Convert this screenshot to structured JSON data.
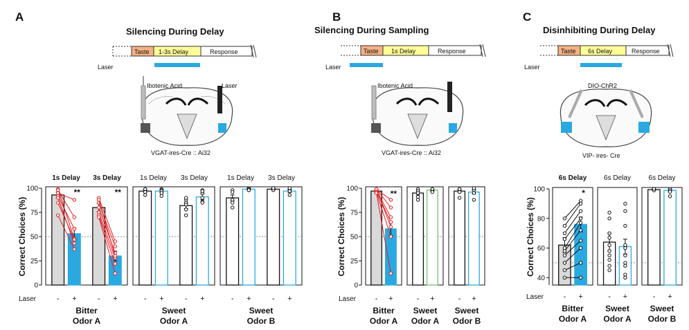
{
  "colors": {
    "laser": "#2aa9e0",
    "taste": "#f4b183",
    "delay": "#ffff99",
    "control_bar": "#d9d9d9",
    "red_lines": "#e8191c",
    "black": "#111111",
    "green_bar": "#7ac07a"
  },
  "panels": [
    {
      "letter": "A",
      "title": "Silencing During Delay",
      "timeline": {
        "taste": "Taste",
        "delay": "1-3s Delay",
        "response": "Response",
        "laser": "Laser"
      },
      "brain": {
        "left_label": "Ibotenic Acid",
        "right_label": "Laser",
        "caption": "VGAT-ires-Cre :: Ai32"
      },
      "groups": [
        {
          "label": "Bitter\nOdor A",
          "subs": [
            {
              "label": "1s Delay",
              "bold": true,
              "sig": "**"
            },
            {
              "label": "3s Delay",
              "bold": true,
              "sig": "**"
            }
          ]
        },
        {
          "label": "Sweet\nOdor A",
          "subs": [
            {
              "label": "1s Delay",
              "bold": false,
              "sig": ""
            },
            {
              "label": "3s Delay",
              "bold": false,
              "sig": ""
            }
          ]
        },
        {
          "label": "Sweet\nOdor B",
          "subs": [
            {
              "label": "1s Delay",
              "bold": false,
              "sig": ""
            },
            {
              "label": "3s Delay",
              "bold": false,
              "sig": ""
            }
          ]
        }
      ]
    },
    {
      "letter": "B",
      "title": "Silencing During Sampling",
      "timeline": {
        "taste": "Taste",
        "delay": "1s Delay",
        "response": "Response",
        "laser": "Laser"
      },
      "brain": {
        "left_label": "Ibotenic Acid",
        "right_label": "",
        "caption": "VGAT-ires-Cre :: Ai32"
      },
      "groups": [
        {
          "label": "Bitter\nOdor A",
          "subs": [
            {
              "label": "",
              "bold": false,
              "sig": "**"
            }
          ]
        },
        {
          "label": "Sweet\nOdor A",
          "subs": [
            {
              "label": "",
              "bold": false,
              "sig": ""
            }
          ]
        },
        {
          "label": "Sweet\nOdor B",
          "subs": [
            {
              "label": "",
              "bold": false,
              "sig": ""
            }
          ]
        }
      ]
    },
    {
      "letter": "C",
      "title": "Disinhibiting During Delay",
      "timeline": {
        "taste": "Taste",
        "delay": "6s Delay",
        "response": "Response",
        "laser": "Laser"
      },
      "brain": {
        "left_label": "",
        "right_label": "",
        "top_label": "DIO-ChR2",
        "caption": "VIP- ires- Cre"
      },
      "groups": [
        {
          "label": "Bitter\nOdor A",
          "subs": [
            {
              "label": "6s Delay",
              "bold": true,
              "sig": "*"
            }
          ]
        },
        {
          "label": "Sweet\nOdor A",
          "subs": [
            {
              "label": "6s Delay",
              "bold": false,
              "sig": ""
            }
          ]
        },
        {
          "label": "Sweet\nOdor B",
          "subs": [
            {
              "label": "6s Delay",
              "bold": false,
              "sig": ""
            }
          ]
        }
      ]
    }
  ],
  "axis": {
    "ylabel": "Correct Choices (%)",
    "laser_label": "Laser",
    "minus": "-",
    "plus": "+"
  },
  "chart_data": [
    {
      "type": "bar",
      "panel": "A",
      "ylabel": "Correct Choices (%)",
      "ylim": [
        0,
        100
      ],
      "yticks": [
        0,
        25,
        50,
        75,
        100
      ],
      "chance": 50,
      "series": [
        {
          "name": "",
          "group": "Bitter Odor A",
          "delay": "1s Delay",
          "means": [
            93,
            53
          ],
          "err": [
            3,
            6
          ],
          "style": [
            "control",
            "laser"
          ],
          "lines": "red",
          "points": [
            [
              99,
              48
            ],
            [
              98,
              70
            ],
            [
              95,
              88
            ],
            [
              92,
              58
            ],
            [
              90,
              43
            ],
            [
              85,
              47
            ],
            [
              72,
              37
            ]
          ]
        },
        {
          "name": "",
          "group": "Bitter Odor A",
          "delay": "3s Delay",
          "means": [
            80,
            30
          ],
          "err": [
            4,
            5
          ],
          "style": [
            "control",
            "laser"
          ],
          "lines": "red",
          "points": [
            [
              90,
              45
            ],
            [
              85,
              40
            ],
            [
              80,
              33
            ],
            [
              75,
              28
            ],
            [
              72,
              22
            ],
            [
              70,
              12
            ],
            [
              88,
              30
            ]
          ]
        },
        {
          "name": "",
          "group": "Sweet Odor A",
          "delay": "1s Delay",
          "means": [
            97,
            97
          ],
          "err": [
            1.5,
            1.5
          ],
          "style": [
            "outline",
            "laser_outline"
          ],
          "points": [
            [
              99,
              99
            ],
            [
              98,
              98
            ],
            [
              96,
              97
            ],
            [
              93,
              95
            ],
            [
              99,
              92
            ]
          ]
        },
        {
          "name": "",
          "group": "Sweet Odor A",
          "delay": "3s Delay",
          "means": [
            82,
            91
          ],
          "err": [
            3,
            3
          ],
          "style": [
            "outline",
            "laser_outline"
          ],
          "points": [
            [
              88,
              98
            ],
            [
              85,
              95
            ],
            [
              83,
              90
            ],
            [
              78,
              86
            ],
            [
              72,
              85
            ],
            [
              90,
              97
            ]
          ]
        },
        {
          "name": "",
          "group": "Sweet Odor B",
          "delay": "1s Delay",
          "means": [
            90,
            99
          ],
          "err": [
            3,
            0.8
          ],
          "style": [
            "outline",
            "laser_outline"
          ],
          "points": [
            [
              98,
              100
            ],
            [
              96,
              99
            ],
            [
              88,
              99
            ],
            [
              85,
              98
            ],
            [
              80,
              98
            ]
          ]
        },
        {
          "name": "",
          "group": "Sweet Odor B",
          "delay": "3s Delay",
          "means": [
            99,
            97
          ],
          "err": [
            0.8,
            1.5
          ],
          "style": [
            "outline",
            "laser_outline"
          ],
          "points": [
            [
              100,
              99
            ],
            [
              99,
              98
            ],
            [
              99,
              97
            ],
            [
              98,
              93
            ],
            [
              100,
              100
            ]
          ]
        }
      ]
    },
    {
      "type": "bar",
      "panel": "B",
      "ylabel": "Correct Choices (%)",
      "ylim": [
        0,
        100
      ],
      "yticks": [
        0,
        25,
        50,
        75,
        100
      ],
      "chance": 50,
      "series": [
        {
          "name": "",
          "group": "Bitter Odor A",
          "means": [
            97,
            58
          ],
          "err": [
            1.5,
            7
          ],
          "style": [
            "control",
            "laser"
          ],
          "lines": "red",
          "points": [
            [
              99,
              88
            ],
            [
              99,
              80
            ],
            [
              98,
              70
            ],
            [
              97,
              65
            ],
            [
              96,
              50
            ],
            [
              95,
              12
            ],
            [
              99,
              60
            ]
          ]
        },
        {
          "name": "",
          "group": "Sweet Odor A",
          "means": [
            95,
            98
          ],
          "err": [
            2,
            1
          ],
          "style": [
            "outline",
            "green_outline"
          ],
          "points": [
            [
              99,
              99
            ],
            [
              97,
              98
            ],
            [
              95,
              97
            ],
            [
              91,
              99
            ],
            [
              88,
              96
            ]
          ]
        },
        {
          "name": "",
          "group": "Sweet Odor B",
          "means": [
            97,
            96
          ],
          "err": [
            1.5,
            2
          ],
          "style": [
            "outline",
            "laser_outline"
          ],
          "points": [
            [
              99,
              99
            ],
            [
              98,
              98
            ],
            [
              96,
              95
            ],
            [
              90,
              88
            ],
            [
              99,
              100
            ]
          ]
        }
      ]
    },
    {
      "type": "bar",
      "panel": "C",
      "ylabel": "Correct Choices (%)",
      "ylim": [
        35,
        100
      ],
      "yticks": [
        40,
        60,
        80,
        100
      ],
      "chance": 50,
      "series": [
        {
          "name": "",
          "group": "Bitter Odor A",
          "means": [
            62,
            76
          ],
          "err": [
            5,
            5
          ],
          "style": [
            "control",
            "laser"
          ],
          "lines": "black",
          "points": [
            [
              80,
              92
            ],
            [
              75,
              90
            ],
            [
              70,
              85
            ],
            [
              66,
              80
            ],
            [
              60,
              77
            ],
            [
              58,
              72
            ],
            [
              55,
              65
            ],
            [
              50,
              60
            ],
            [
              45,
              50
            ],
            [
              40,
              40
            ]
          ]
        },
        {
          "name": "",
          "group": "Sweet Odor A",
          "means": [
            64,
            61
          ],
          "err": [
            6,
            5
          ],
          "style": [
            "outline",
            "laser_outline"
          ],
          "points": [
            [
              84,
              90
            ],
            [
              80,
              85
            ],
            [
              70,
              75
            ],
            [
              67,
              60
            ],
            [
              62,
              55
            ],
            [
              58,
              62
            ],
            [
              55,
              50
            ],
            [
              52,
              48
            ],
            [
              48,
              42
            ],
            [
              45,
              40
            ]
          ]
        },
        {
          "name": "",
          "group": "Sweet Odor B",
          "means": [
            99.5,
            99
          ],
          "err": [
            0.3,
            0.8
          ],
          "style": [
            "outline",
            "laser_outline"
          ],
          "points": [
            [
              100,
              100
            ],
            [
              100,
              99
            ],
            [
              100,
              99
            ],
            [
              99,
              98
            ],
            [
              100,
              95
            ]
          ]
        }
      ]
    }
  ]
}
